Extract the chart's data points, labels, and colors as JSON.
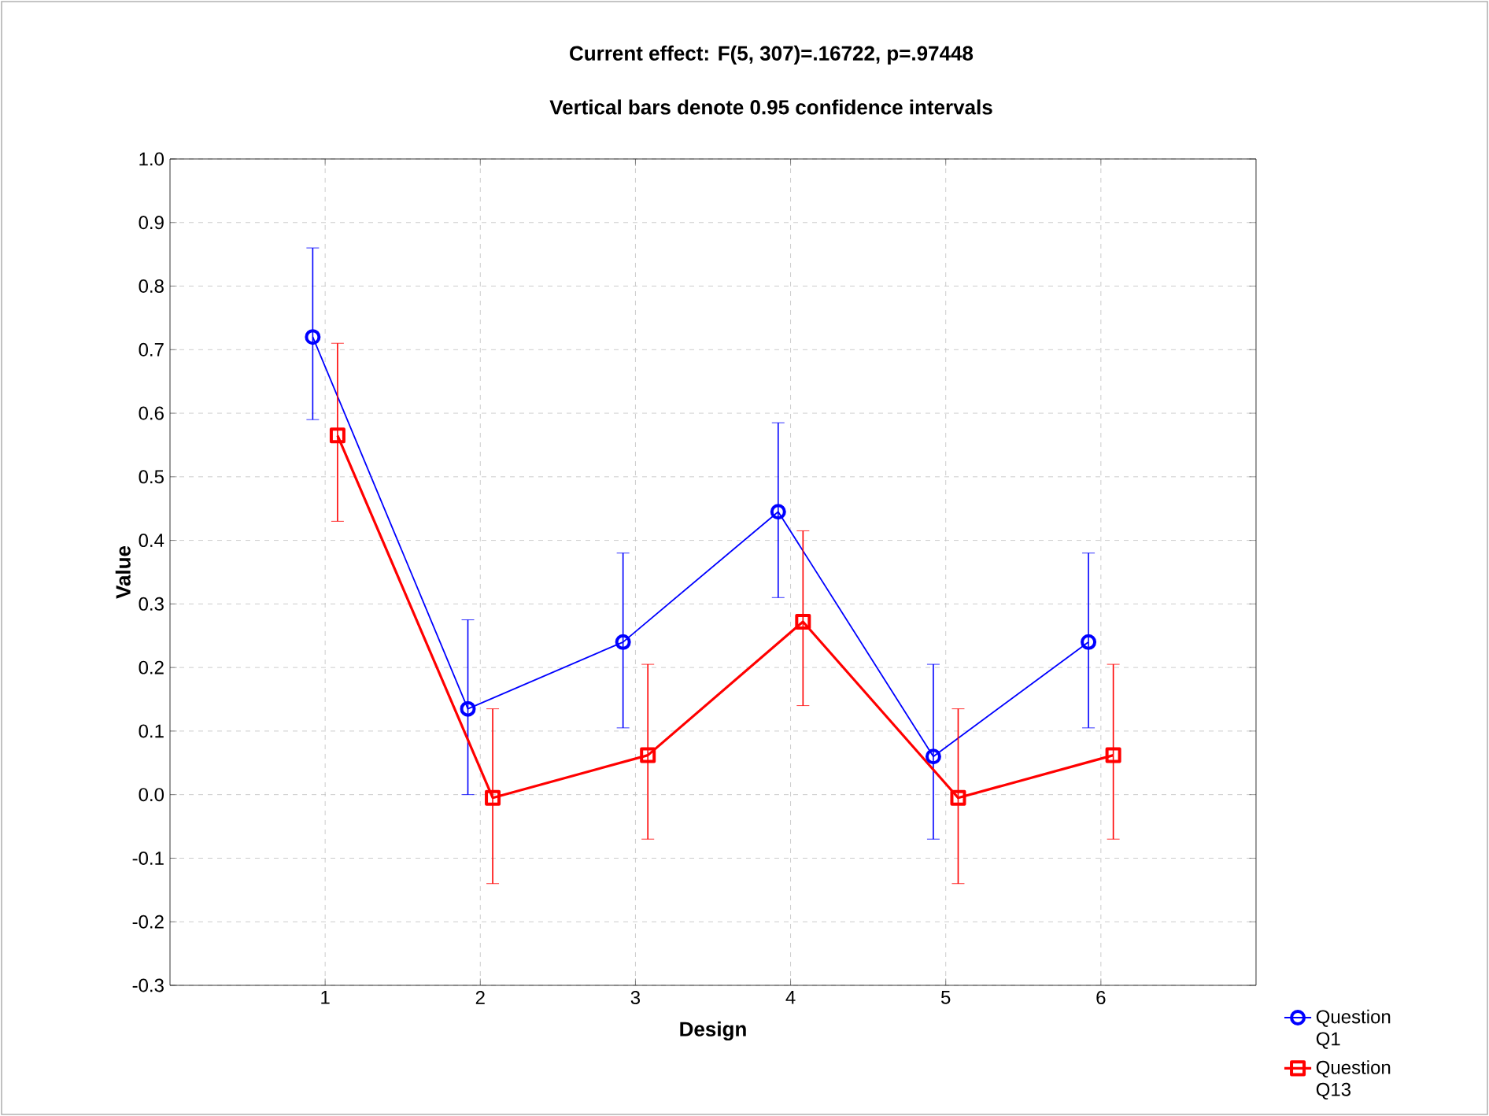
{
  "chart_data": {
    "type": "line",
    "title": "Current effect: F(5, 307)=.16722, p=.97448",
    "subtitle": "Vertical bars denote 0.95 confidence intervals",
    "xlabel": "Design",
    "ylabel": "Value",
    "categories": [
      "1",
      "2",
      "3",
      "4",
      "5",
      "6"
    ],
    "ylim": [
      -0.3,
      1.0
    ],
    "yticks": [
      {
        "value": -0.3,
        "label": "-0.3"
      },
      {
        "value": -0.2,
        "label": "-0.2"
      },
      {
        "value": -0.1,
        "label": "-0.1"
      },
      {
        "value": 0,
        "label": "0.0"
      },
      {
        "value": 0.1,
        "label": "0.1"
      },
      {
        "value": 0.2,
        "label": "0.2"
      },
      {
        "value": 0.3,
        "label": "0.3"
      },
      {
        "value": 0.4,
        "label": "0.4"
      },
      {
        "value": 0.5,
        "label": "0.5"
      },
      {
        "value": 0.6,
        "label": "0.6"
      },
      {
        "value": 0.7,
        "label": "0.7"
      },
      {
        "value": 0.8,
        "label": "0.8"
      },
      {
        "value": 0.9,
        "label": "0.9"
      },
      {
        "value": 1,
        "label": "1.0"
      }
    ],
    "grid": true,
    "legend": "bottom right",
    "series": [
      {
        "name": "Question Q1",
        "color": "#0000ff",
        "marker": "circle",
        "values": [
          0.72,
          0.135,
          0.24,
          0.445,
          0.06,
          0.24
        ],
        "errors": [
          [
            0.59,
            0.86
          ],
          [
            0.0,
            0.275
          ],
          [
            0.105,
            0.38
          ],
          [
            0.31,
            0.585
          ],
          [
            -0.07,
            0.205
          ],
          [
            0.105,
            0.38
          ]
        ]
      },
      {
        "name": "Question Q13",
        "color": "#ff0000",
        "marker": "square",
        "values": [
          0.565,
          -0.005,
          0.062,
          0.272,
          -0.005,
          0.062
        ],
        "errors": [
          [
            0.43,
            0.71
          ],
          [
            -0.14,
            0.135
          ],
          [
            -0.07,
            0.205
          ],
          [
            0.14,
            0.415
          ],
          [
            -0.14,
            0.135
          ],
          [
            -0.07,
            0.205
          ]
        ]
      }
    ]
  }
}
